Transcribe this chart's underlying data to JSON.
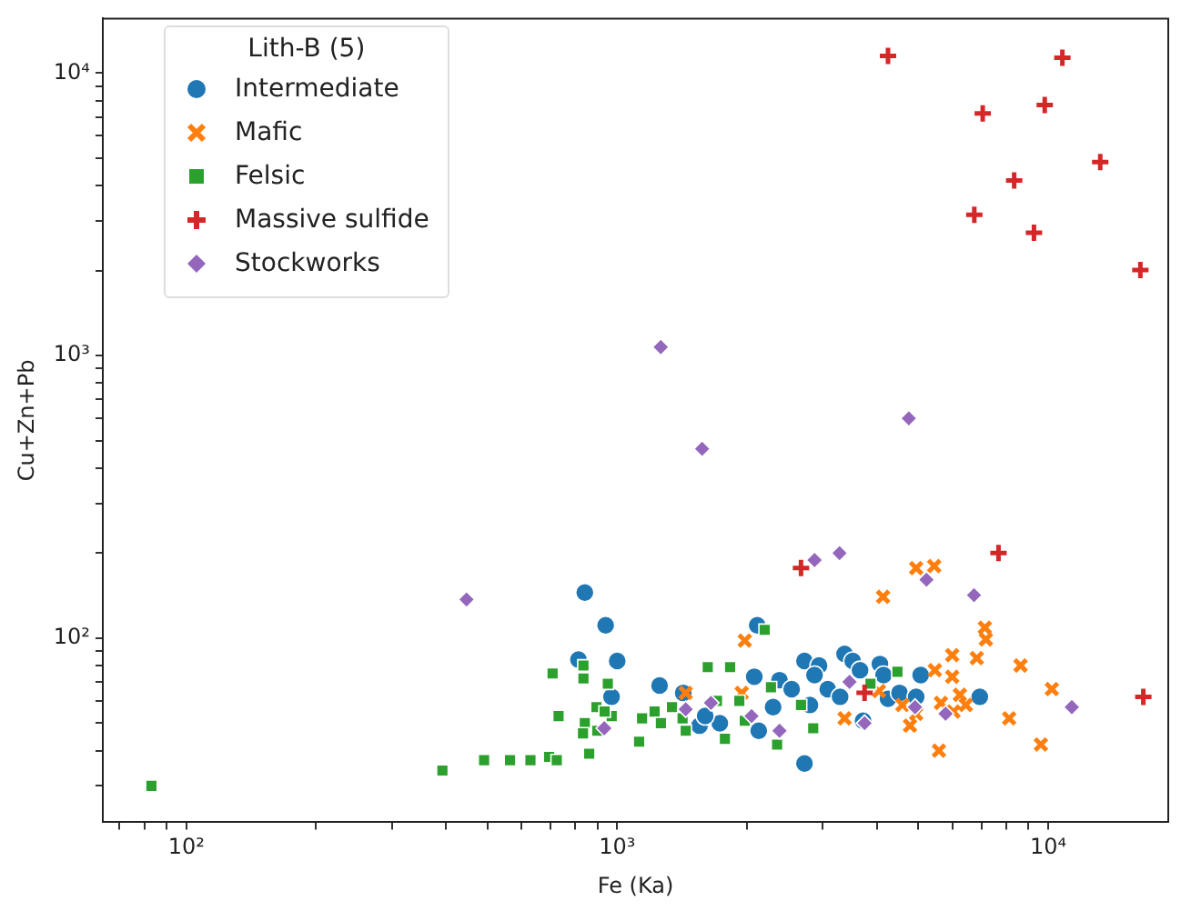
{
  "chart_data": {
    "type": "scatter",
    "xlabel": "Fe (Ka)",
    "ylabel": "Cu+Zn+Pb",
    "legend_title": "Lith-B (5)",
    "legend": "top left",
    "grid": false,
    "log": "xy",
    "xlim": [
      64,
      19000
    ],
    "ylim": [
      22.3,
      15600
    ],
    "xticks": [
      {
        "value": 70,
        "label": null
      },
      {
        "value": 80,
        "label": null
      },
      {
        "value": 90,
        "label": null
      },
      {
        "value": 100,
        "label": "10²"
      },
      {
        "value": 200,
        "label": null
      },
      {
        "value": 300,
        "label": null
      },
      {
        "value": 400,
        "label": null
      },
      {
        "value": 500,
        "label": null
      },
      {
        "value": 600,
        "label": null
      },
      {
        "value": 700,
        "label": null
      },
      {
        "value": 800,
        "label": null
      },
      {
        "value": 900,
        "label": null
      },
      {
        "value": 1000,
        "label": "10³"
      },
      {
        "value": 2000,
        "label": null
      },
      {
        "value": 3000,
        "label": null
      },
      {
        "value": 4000,
        "label": null
      },
      {
        "value": 5000,
        "label": null
      },
      {
        "value": 6000,
        "label": null
      },
      {
        "value": 7000,
        "label": null
      },
      {
        "value": 8000,
        "label": null
      },
      {
        "value": 9000,
        "label": null
      },
      {
        "value": 10000,
        "label": "10⁴"
      }
    ],
    "yticks": [
      {
        "value": 30,
        "label": null
      },
      {
        "value": 40,
        "label": null
      },
      {
        "value": 50,
        "label": null
      },
      {
        "value": 60,
        "label": null
      },
      {
        "value": 70,
        "label": null
      },
      {
        "value": 80,
        "label": null
      },
      {
        "value": 90,
        "label": null
      },
      {
        "value": 100,
        "label": "10²"
      },
      {
        "value": 200,
        "label": null
      },
      {
        "value": 300,
        "label": null
      },
      {
        "value": 400,
        "label": null
      },
      {
        "value": 500,
        "label": null
      },
      {
        "value": 600,
        "label": null
      },
      {
        "value": 700,
        "label": null
      },
      {
        "value": 800,
        "label": null
      },
      {
        "value": 900,
        "label": null
      },
      {
        "value": 1000,
        "label": "10³"
      },
      {
        "value": 2000,
        "label": null
      },
      {
        "value": 3000,
        "label": null
      },
      {
        "value": 4000,
        "label": null
      },
      {
        "value": 5000,
        "label": null
      },
      {
        "value": 6000,
        "label": null
      },
      {
        "value": 7000,
        "label": null
      },
      {
        "value": 8000,
        "label": null
      },
      {
        "value": 9000,
        "label": null
      },
      {
        "value": 10000,
        "label": "10⁴"
      }
    ],
    "series": [
      {
        "name": "Intermediate",
        "color": "#1f77b4",
        "marker": "circle",
        "x": [
          841,
          940,
          813,
          1000,
          970,
          1254,
          1423,
          2113,
          2080,
          2720,
          2940,
          3370,
          3520,
          4070,
          3660,
          4150,
          5060,
          2380,
          2870,
          3080,
          2540,
          2300,
          2800,
          3290,
          4250,
          4520,
          4940,
          6940,
          2130,
          1552,
          1730,
          3720,
          1600,
          2720
        ],
        "values": [
          145,
          111,
          84,
          83,
          62,
          68,
          64,
          111,
          73,
          83,
          80,
          88,
          83,
          81,
          77,
          74,
          74,
          71,
          74,
          66,
          66,
          57,
          58,
          62,
          61,
          64,
          62,
          62,
          47,
          49,
          50,
          51,
          53,
          36
        ]
      },
      {
        "name": "Mafic",
        "color": "#ff7f0e",
        "marker": "cross",
        "x": [
          4940,
          5440,
          4140,
          1977,
          1945,
          3370,
          4050,
          4590,
          4780,
          5460,
          5990,
          5990,
          5640,
          6240,
          6440,
          6030,
          6830,
          7130,
          7170,
          8630,
          10200,
          8120,
          9620,
          5580,
          1442,
          4940
        ],
        "values": [
          177,
          180,
          140,
          98,
          64,
          52,
          65,
          58,
          49,
          77,
          87,
          73,
          59,
          63,
          58,
          55,
          85,
          109,
          99,
          80,
          66,
          52,
          42,
          40,
          64,
          54
        ]
      },
      {
        "name": "Felsic",
        "color": "#2ca02c",
        "marker": "square",
        "x": [
          708,
          835,
          835,
          951,
          731,
          895,
          971,
          841,
          833,
          899,
          491,
          564,
          629,
          695,
          724,
          861,
          393,
          83,
          2199,
          1622,
          1828,
          935,
          1124,
          1221,
          1340,
          1142,
          1418,
          1442,
          1778,
          1920,
          1704,
          2274,
          2350,
          2850,
          2670,
          3870,
          4470,
          1263,
          1977
        ],
        "values": [
          75,
          80,
          72,
          69,
          53,
          57,
          53,
          50,
          46,
          47,
          37,
          37,
          37,
          38,
          37,
          39,
          34,
          30,
          107,
          79,
          79,
          55,
          43,
          55,
          57,
          52,
          52,
          47,
          44,
          60,
          60,
          67,
          42,
          48,
          58,
          69,
          76,
          50,
          51
        ]
      },
      {
        "name": "Massive sulfide",
        "color": "#d62728",
        "marker": "plus",
        "x": [
          4250,
          10790,
          7050,
          9820,
          13210,
          8340,
          6740,
          9270,
          16370,
          7670,
          2670,
          3750,
          16630
        ],
        "values": [
          11500,
          11330,
          7200,
          7710,
          4840,
          4170,
          3150,
          2720,
          2010,
          200,
          177,
          64,
          62
        ]
      },
      {
        "name": "Stockworks",
        "color": "#9467bd",
        "marker": "diamond",
        "x": [
          447,
          933,
          1262,
          1574,
          4750,
          2870,
          3280,
          5220,
          6730,
          1442,
          1650,
          2050,
          2380,
          3460,
          3750,
          4910,
          5780,
          11350
        ],
        "values": [
          137,
          48,
          1072,
          468,
          600,
          189,
          200,
          161,
          142,
          56,
          59,
          53,
          47,
          70,
          50,
          57,
          54,
          57
        ]
      }
    ]
  }
}
